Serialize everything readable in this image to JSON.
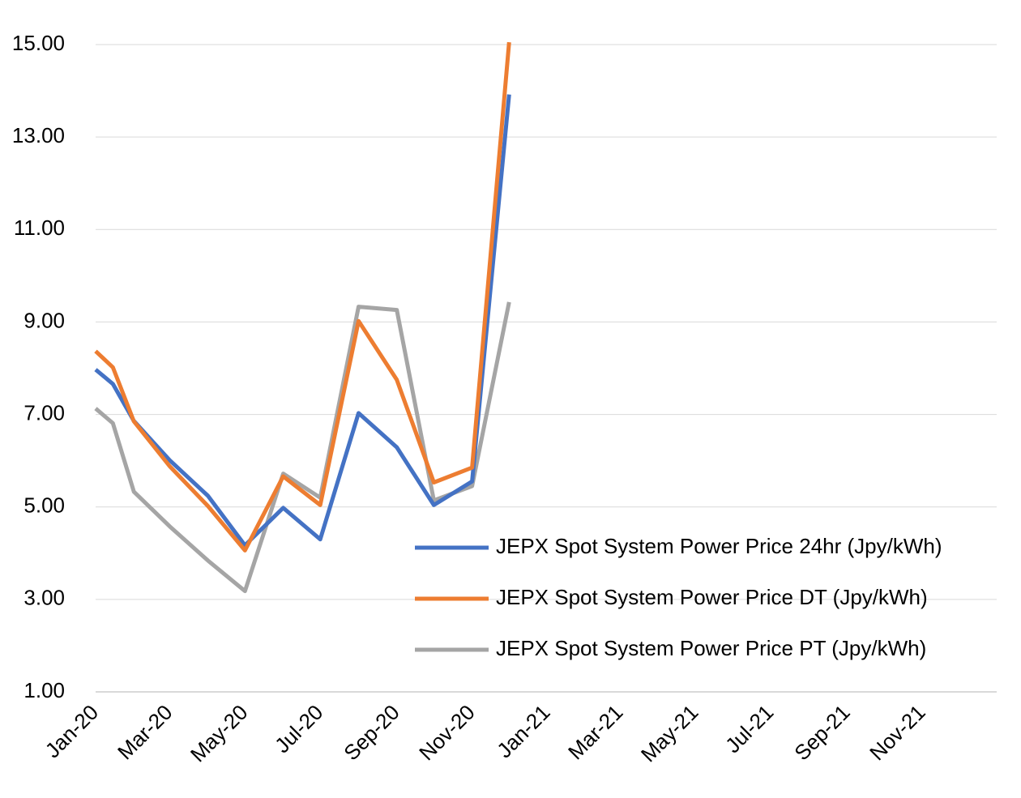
{
  "chart_data": {
    "type": "line",
    "title": "",
    "xlabel": "",
    "ylabel": "",
    "ylim": [
      1,
      15
    ],
    "y_ticks": [
      "1.00",
      "3.00",
      "5.00",
      "7.00",
      "9.00",
      "11.00",
      "13.00",
      "15.00"
    ],
    "x_tick_labels": [
      "Jan-20",
      "Mar-20",
      "May-20",
      "Jul-20",
      "Sep-20",
      "Nov-20",
      "Jan-21",
      "Mar-21",
      "May-21",
      "Jul-21",
      "Sep-21",
      "Nov-21"
    ],
    "x_range": [
      "2020-01-01",
      "2021-12-31"
    ],
    "grid": true,
    "legend_position": "bottom-right",
    "x": [
      "2020-01-01",
      "2020-01-15",
      "2020-02-01",
      "2020-03-01",
      "2020-04-01",
      "2020-05-01",
      "2020-06-01",
      "2020-07-01",
      "2020-08-01",
      "2020-09-01",
      "2020-10-01",
      "2020-11-01",
      "2020-12-01"
    ],
    "series": [
      {
        "name": "JEPX Spot System Power Price 24hr (Jpy/kWh)",
        "color": "#4472c4",
        "values": [
          7.97,
          7.66,
          6.86,
          6.01,
          5.24,
          4.17,
          4.98,
          4.3,
          7.03,
          6.29,
          5.04,
          5.55,
          13.92
        ]
      },
      {
        "name": "JEPX Spot System Power Price DT (Jpy/kWh)",
        "color": "#ed7d31",
        "values": [
          8.37,
          8.02,
          6.85,
          5.88,
          5.02,
          4.06,
          5.66,
          5.04,
          9.02,
          7.75,
          5.53,
          5.85,
          15.05
        ]
      },
      {
        "name": "JEPX Spot System Power Price PT (Jpy/kWh)",
        "color": "#a5a5a5",
        "values": [
          7.13,
          6.81,
          5.33,
          4.58,
          3.84,
          3.18,
          5.72,
          5.2,
          9.33,
          9.26,
          5.14,
          5.45,
          9.43
        ]
      }
    ]
  }
}
